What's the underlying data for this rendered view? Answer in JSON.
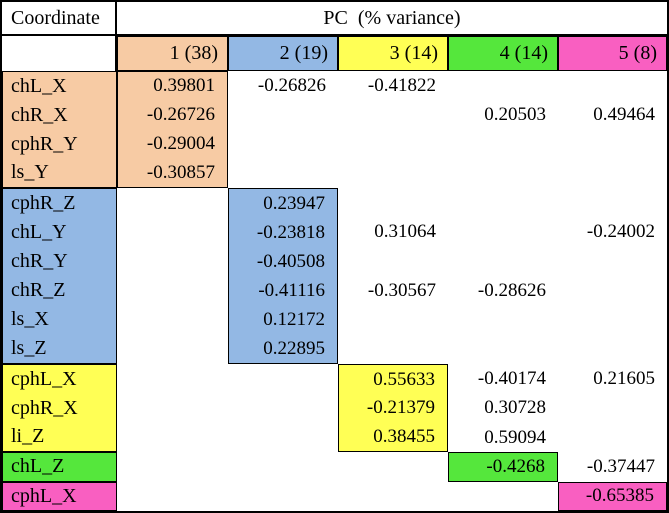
{
  "colors": {
    "pc1": "#F7CBA4",
    "pc2": "#93B8E4",
    "pc3": "#FFFF55",
    "pc4": "#55E73C",
    "pc5": "#F95FC1",
    "border": "#000000",
    "background": "#FFFFFF"
  },
  "header": {
    "corner": "Coordinate",
    "span": "PC  (% variance)",
    "columns": [
      "1 (38)",
      "2 (19)",
      "3 (14)",
      "4 (14)",
      "5 (8)"
    ]
  },
  "groups": [
    {
      "pc": "1",
      "rows": [
        {
          "coord": "chL_X",
          "v1": "0.39801",
          "v2": "-0.26826",
          "v3": "-0.41822"
        },
        {
          "coord": "chR_X",
          "v1": "-0.26726",
          "v4": "0.20503",
          "v5": "0.49464"
        },
        {
          "coord": "cphR_Y",
          "v1": "-0.29004"
        },
        {
          "coord": "ls_Y",
          "v1": "-0.30857"
        }
      ]
    },
    {
      "pc": "2",
      "rows": [
        {
          "coord": "cphR_Z",
          "v2": "0.23947"
        },
        {
          "coord": "chL_Y",
          "v2": "-0.23818",
          "v3": "0.31064",
          "v5": "-0.24002"
        },
        {
          "coord": "chR_Y",
          "v2": "-0.40508"
        },
        {
          "coord": "chR_Z",
          "v2": "-0.41116",
          "v3": "-0.30567",
          "v4": "-0.28626"
        },
        {
          "coord": "ls_X",
          "v2": "0.12172"
        },
        {
          "coord": "ls_Z",
          "v2": "0.22895"
        }
      ]
    },
    {
      "pc": "3",
      "rows": [
        {
          "coord": "cphL_X",
          "v3": "0.55633",
          "v4": "-0.40174",
          "v5": "0.21605"
        },
        {
          "coord": "cphR_X",
          "v3": "-0.21379",
          "v4": "0.30728"
        },
        {
          "coord": "li_Z",
          "v3": "0.38455",
          "v4": "0.59094"
        }
      ]
    },
    {
      "pc": "4",
      "rows": [
        {
          "coord": "chL_Z",
          "v4": "-0.4268",
          "v5": "-0.37447"
        }
      ]
    },
    {
      "pc": "5",
      "rows": [
        {
          "coord": "cphL_X",
          "v5": "-0.65385"
        }
      ]
    }
  ]
}
